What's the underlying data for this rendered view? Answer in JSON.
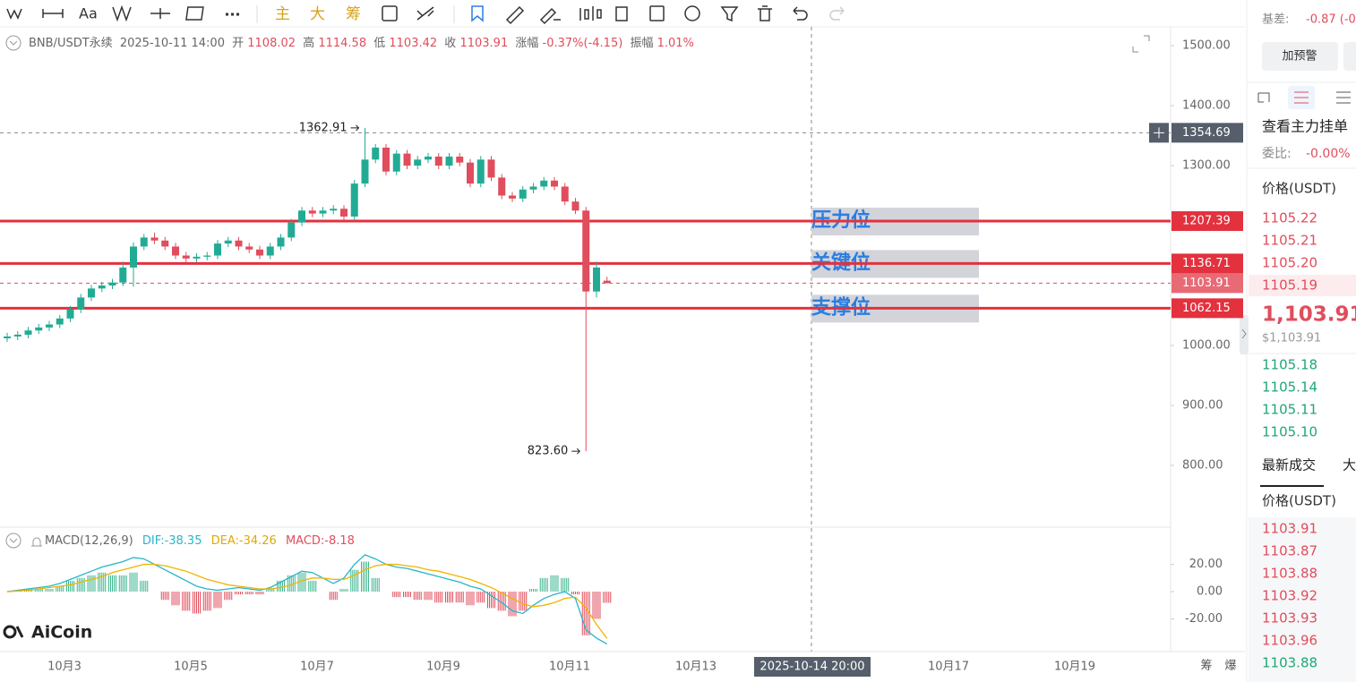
{
  "toolbar": {
    "text_tool": "Aa",
    "items": [
      "主",
      "大",
      "筹"
    ]
  },
  "header": {
    "symbol": "BNB/USDT永续",
    "time": "2025-10-11 14:00",
    "open_label": "开",
    "open": "1108.02",
    "high_label": "高",
    "high": "1114.58",
    "low_label": "低",
    "low": "1103.42",
    "close_label": "收",
    "close": "1103.91",
    "change_label": "涨幅",
    "change": "-0.37%(-4.15)",
    "amplitude_label": "振幅",
    "amplitude": "1.01%"
  },
  "logo": "AiCoin",
  "corner": [
    "筹",
    "爆"
  ],
  "chart_data": {
    "type": "candlestick",
    "up_color": "#22ab94",
    "down_color": "#e04d5c",
    "ylim": [
      698.5,
      1519.4
    ],
    "yticks": [
      {
        "value": 1500,
        "label": "1500.00"
      },
      {
        "value": 1400,
        "label": "1400.00"
      },
      {
        "value": 1300,
        "label": "1300.00"
      },
      {
        "value": 1000,
        "label": "1000.00"
      },
      {
        "value": 900,
        "label": "900.00"
      },
      {
        "value": 800,
        "label": "800.00"
      }
    ],
    "x_labels": [
      "10月3",
      "10月5",
      "10月7",
      "10月9",
      "10月11",
      "10月13",
      "10月17",
      "10月19"
    ],
    "candles": [
      [
        1012,
        1021,
        1006,
        1015
      ],
      [
        1015,
        1024,
        1009,
        1018
      ],
      [
        1018,
        1031,
        1012,
        1025
      ],
      [
        1025,
        1036,
        1019,
        1030
      ],
      [
        1030,
        1041,
        1024,
        1035
      ],
      [
        1035,
        1051,
        1029,
        1045
      ],
      [
        1045,
        1066,
        1039,
        1060
      ],
      [
        1060,
        1086,
        1054,
        1080
      ],
      [
        1080,
        1101,
        1074,
        1095
      ],
      [
        1095,
        1106,
        1089,
        1100
      ],
      [
        1100,
        1111,
        1094,
        1105
      ],
      [
        1105,
        1140,
        1099,
        1130
      ],
      [
        1130,
        1172,
        1098,
        1165
      ],
      [
        1165,
        1186,
        1159,
        1180
      ],
      [
        1180,
        1188,
        1169,
        1175
      ],
      [
        1175,
        1181,
        1159,
        1165
      ],
      [
        1165,
        1171,
        1144,
        1150
      ],
      [
        1150,
        1156,
        1139,
        1145
      ],
      [
        1145,
        1154,
        1139,
        1148
      ],
      [
        1148,
        1156,
        1142,
        1150
      ],
      [
        1150,
        1176,
        1144,
        1170
      ],
      [
        1170,
        1181,
        1164,
        1175
      ],
      [
        1175,
        1181,
        1159,
        1165
      ],
      [
        1165,
        1171,
        1154,
        1160
      ],
      [
        1160,
        1166,
        1144,
        1150
      ],
      [
        1150,
        1171,
        1144,
        1165
      ],
      [
        1165,
        1186,
        1159,
        1180
      ],
      [
        1180,
        1211,
        1174,
        1205
      ],
      [
        1205,
        1231,
        1199,
        1225
      ],
      [
        1225,
        1231,
        1214,
        1220
      ],
      [
        1220,
        1231,
        1214,
        1225
      ],
      [
        1225,
        1234,
        1219,
        1228
      ],
      [
        1228,
        1234,
        1209,
        1215
      ],
      [
        1215,
        1276,
        1209,
        1270
      ],
      [
        1270,
        1362.91,
        1264,
        1310
      ],
      [
        1310,
        1336,
        1304,
        1330
      ],
      [
        1330,
        1336,
        1284,
        1290
      ],
      [
        1290,
        1326,
        1284,
        1320
      ],
      [
        1320,
        1326,
        1294,
        1300
      ],
      [
        1300,
        1316,
        1294,
        1310
      ],
      [
        1310,
        1321,
        1304,
        1315
      ],
      [
        1315,
        1321,
        1294,
        1300
      ],
      [
        1300,
        1321,
        1294,
        1315
      ],
      [
        1315,
        1321,
        1299,
        1305
      ],
      [
        1305,
        1311,
        1264,
        1270
      ],
      [
        1270,
        1316,
        1264,
        1310
      ],
      [
        1310,
        1316,
        1274,
        1280
      ],
      [
        1280,
        1286,
        1244,
        1250
      ],
      [
        1250,
        1256,
        1239,
        1245
      ],
      [
        1245,
        1266,
        1239,
        1260
      ],
      [
        1260,
        1271,
        1254,
        1265
      ],
      [
        1265,
        1281,
        1259,
        1275
      ],
      [
        1275,
        1281,
        1259,
        1265
      ],
      [
        1265,
        1271,
        1234,
        1240
      ],
      [
        1240,
        1246,
        1219,
        1225
      ],
      [
        1225,
        1231,
        823.6,
        1090
      ],
      [
        1090,
        1140,
        1080,
        1130
      ],
      [
        1108.02,
        1114.58,
        1103.42,
        1103.91
      ]
    ],
    "annotations": [
      {
        "value": 1362.91,
        "label": "1362.91"
      },
      {
        "value": 823.6,
        "label": "823.60"
      }
    ],
    "levels": [
      {
        "value": 1207.39,
        "label": "1207.39",
        "name": "压力位"
      },
      {
        "value": 1136.71,
        "label": "1136.71",
        "name": "关键位"
      },
      {
        "value": 1062.15,
        "label": "1062.15",
        "name": "支撑位"
      }
    ],
    "level_color": "#e3313e",
    "current": {
      "value": 1103.91,
      "label": "1103.91"
    },
    "crosshair": {
      "value": 1354.69,
      "label": "1354.69",
      "time": "2025-10-14 20:00"
    },
    "macd": {
      "name": "MACD(12,26,9)",
      "dif_label": "DIF:-38.35",
      "dea_label": "DEA:-34.26",
      "macd_label": "MACD:-8.18",
      "ylim": [
        -43.9,
        46.6
      ],
      "yticks": [
        {
          "value": 20,
          "label": "20.00"
        },
        {
          "value": 0,
          "label": "0.00"
        },
        {
          "value": -20,
          "label": "-20.00"
        }
      ],
      "dif_color": "#27b6c9",
      "dea_color": "#f0b400",
      "dif": [
        0,
        1,
        2,
        3,
        4,
        6,
        9,
        12,
        15,
        18,
        20,
        22,
        25,
        24,
        20,
        16,
        12,
        8,
        4,
        2,
        1,
        2,
        3,
        2,
        1,
        3,
        7,
        11,
        15,
        14,
        10,
        6,
        10,
        20,
        27,
        24,
        20,
        18,
        17,
        15,
        13,
        11,
        9,
        7,
        4,
        2,
        -3,
        -8,
        -14,
        -16,
        -10,
        -5,
        -2,
        0,
        -5,
        -28,
        -34,
        -38.35
      ],
      "dea": [
        0,
        0.5,
        1,
        2,
        3,
        4,
        5,
        7,
        9,
        11,
        14,
        16,
        18,
        20,
        20,
        19,
        17,
        15,
        12,
        9,
        7,
        5,
        4,
        3,
        2,
        2,
        3,
        5,
        8,
        10,
        10,
        9,
        9,
        12,
        16,
        19,
        20,
        20,
        19,
        18,
        16,
        15,
        13,
        11,
        9,
        6,
        3,
        -1,
        -5,
        -9,
        -11,
        -10,
        -8,
        -5,
        -4,
        -12,
        -24,
        -34.26
      ],
      "hist": [
        0,
        1,
        2,
        2,
        2,
        4,
        8,
        10,
        12,
        14,
        12,
        12,
        14,
        8,
        0,
        -6,
        -10,
        -14,
        -16,
        -14,
        -12,
        -6,
        -2,
        -2,
        -2,
        2,
        8,
        12,
        14,
        8,
        0,
        -6,
        2,
        16,
        22,
        10,
        0,
        -4,
        -4,
        -6,
        -6,
        -8,
        -8,
        -8,
        -10,
        -8,
        -12,
        -14,
        -18,
        -14,
        2,
        10,
        12,
        10,
        -2,
        -32,
        -20,
        -8.18
      ]
    }
  },
  "side": {
    "basis_label": "基差:",
    "basis_value": "-0.87 (-0",
    "alert_button": "加预警",
    "depth_title": "查看主力挂单",
    "ratio_label": "委比:",
    "ratio_value": "-0.00%",
    "price_header": "价格(USDT)",
    "asks": [
      "1105.22",
      "1105.21",
      "1105.20",
      "1105.19"
    ],
    "last_price": "1,103.91",
    "last_price_usd": "$1,103.91",
    "bids": [
      "1105.18",
      "1105.14",
      "1105.11",
      "1105.10"
    ],
    "trades_tab": "最新成交",
    "big_tab": "大",
    "trades_price_header": "价格(USDT)",
    "trades": [
      {
        "price": "1103.91",
        "side": "sell"
      },
      {
        "price": "1103.87",
        "side": "sell"
      },
      {
        "price": "1103.88",
        "side": "sell"
      },
      {
        "price": "1103.92",
        "side": "sell"
      },
      {
        "price": "1103.93",
        "side": "sell"
      },
      {
        "price": "1103.96",
        "side": "sell"
      },
      {
        "price": "1103.88",
        "side": "buy"
      }
    ]
  }
}
